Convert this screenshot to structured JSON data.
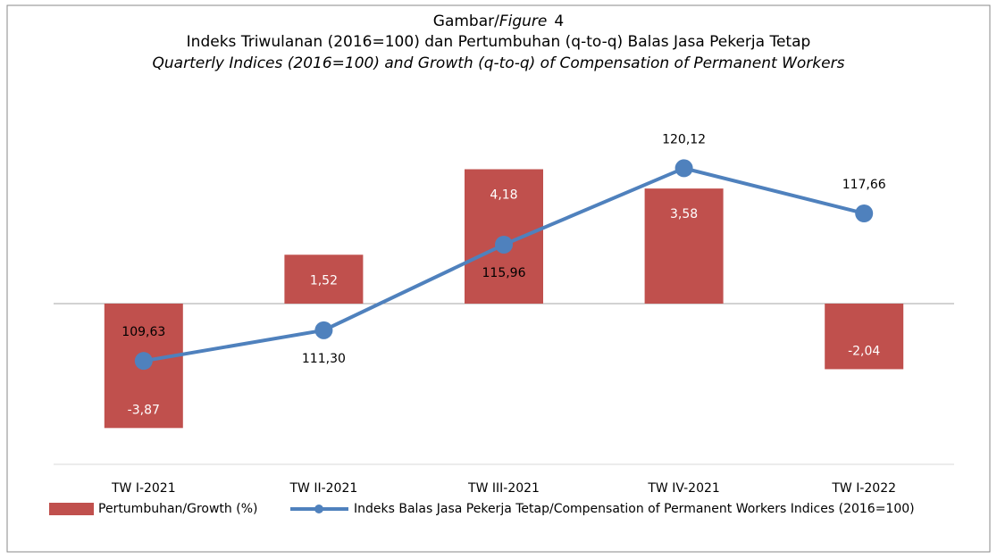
{
  "chart_data": {
    "type": "bar",
    "title_parts": [
      "Gambar/",
      "Figure",
      "4"
    ],
    "subtitle": "Indeks Triwulanan (2016=100) dan Pertumbuhan (q-to-q) Balas Jasa Pekerja Tetap",
    "subtitle_en": "Quarterly Indices (2016=100) and Growth (q-to-q) of Compensation of Permanent Workers",
    "categories": [
      "TW I-2021",
      "TW II-2021",
      "TW III-2021",
      "TW IV-2021",
      "TW I-2022"
    ],
    "series": [
      {
        "name": "Pertumbuhan/Growth (%)",
        "type": "bar",
        "color": "#c0504d",
        "axis": "y",
        "values": [
          -3.87,
          1.52,
          4.18,
          3.58,
          -2.04
        ],
        "value_labels": [
          "-3,87",
          "1,52",
          "4,18",
          "3,58",
          "-2,04"
        ]
      },
      {
        "name": "Indeks Balas Jasa Pekerja Tetap/Compensation of Permanent Workers Indices (2016=100)",
        "type": "line",
        "color": "#4f81bd",
        "axis": "y2",
        "values": [
          109.63,
          111.3,
          115.96,
          120.12,
          117.66
        ],
        "value_labels": [
          "109,63",
          "111,30",
          "115,96",
          "120,12",
          "117,66"
        ]
      }
    ],
    "ylim": [
      -5,
      5
    ],
    "y2lim": [
      104,
      121.5
    ],
    "legend": "bottom"
  }
}
